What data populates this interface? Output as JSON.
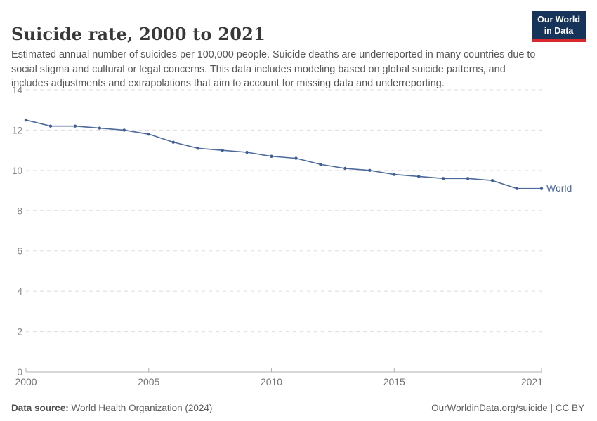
{
  "header": {
    "title": "Suicide rate, 2000 to 2021",
    "subtitle": "Estimated annual number of suicides per 100,000 people. Suicide deaths are underreported in many countries due to social stigma and cultural or legal concerns. This data includes modeling based on global suicide patterns, and includes adjustments and extrapolations that aim to account for missing data and underreporting.",
    "logo": {
      "line1": "Our World",
      "line2": "in Data"
    }
  },
  "chart_data": {
    "type": "line",
    "title": "Suicide rate, 2000 to 2021",
    "x": [
      2000,
      2001,
      2002,
      2003,
      2004,
      2005,
      2006,
      2007,
      2008,
      2009,
      2010,
      2011,
      2012,
      2013,
      2014,
      2015,
      2016,
      2017,
      2018,
      2019,
      2020,
      2021
    ],
    "series": [
      {
        "name": "World",
        "color": "#4c6a9c",
        "dot_color": "#3e5f96",
        "values": [
          12.5,
          12.2,
          12.2,
          12.1,
          12.0,
          11.8,
          11.4,
          11.1,
          11.0,
          10.9,
          10.7,
          10.6,
          10.3,
          10.1,
          10.0,
          9.8,
          9.7,
          9.6,
          9.6,
          9.5,
          9.1,
          9.1
        ]
      }
    ],
    "xlabel": "",
    "ylabel": "",
    "ylim": [
      0,
      14
    ],
    "yticks": [
      0,
      2,
      4,
      6,
      8,
      10,
      12,
      14
    ],
    "xticks": [
      2000,
      2005,
      2010,
      2015,
      2021
    ],
    "grid": "horizontal-dashed",
    "legend": "line-end-label"
  },
  "colors": {
    "line": "#4c6a9c",
    "grid": "#dedede",
    "axis": "#b0b0b0",
    "y_tick_label": "#878787",
    "x_tick_label": "#737373",
    "logo_bg": "#16335a",
    "logo_stripe": "#d7282d"
  },
  "footer": {
    "source_label": "Data source:",
    "source_value": " World Health Organization (2024)",
    "credit": "OurWorldinData.org/suicide | CC BY"
  }
}
